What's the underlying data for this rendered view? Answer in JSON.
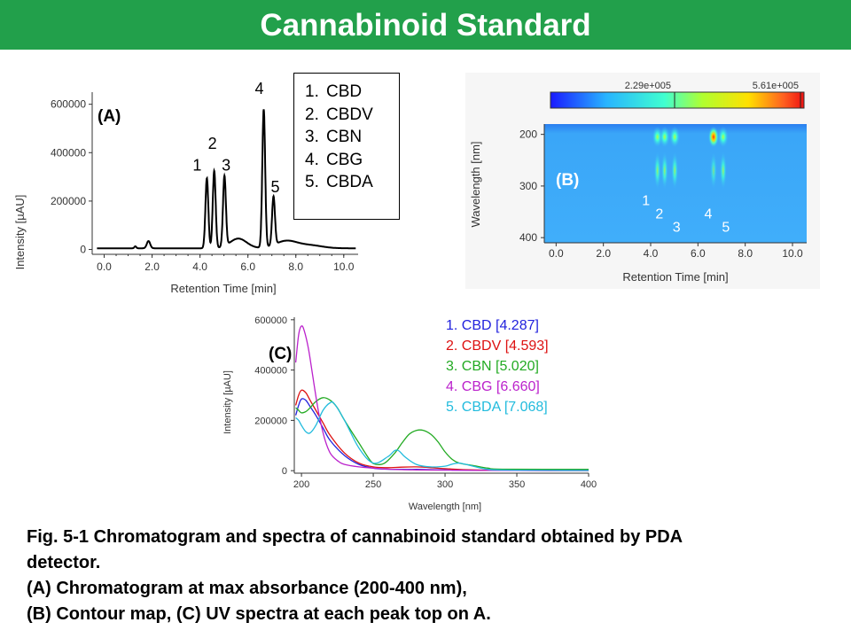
{
  "page": {
    "title": "Cannabinoid Standard"
  },
  "legend_box": {
    "items": [
      {
        "num": "1.",
        "label": "CBD"
      },
      {
        "num": "2.",
        "label": "CBDV"
      },
      {
        "num": "3.",
        "label": "CBN"
      },
      {
        "num": "4.",
        "label": "CBG"
      },
      {
        "num": "5.",
        "label": "CBDA"
      }
    ]
  },
  "caption": {
    "line1": "Fig. 5-1  Chromatogram and spectra of cannabinoid standard obtained by PDA",
    "line2": "detector.",
    "line3": "(A)  Chromatogram at max absorbance (200-400 nm),",
    "line4": "(B) Contour map, (C) UV spectra at each peak top on A."
  },
  "colors": {
    "title_bar": "#22a04b",
    "cbd": "#2222dd",
    "cbdv": "#dd1111",
    "cbn": "#22aa22",
    "cbg": "#bb22cc",
    "cbda": "#22bbdd"
  },
  "chart_data": [
    {
      "id": "A",
      "type": "line",
      "panel_label": "(A)",
      "xlabel": "Retention Time [min]",
      "ylabel": "Intensity [µAU]",
      "xlim": [
        -0.5,
        10.6
      ],
      "ylim": [
        -20000,
        650000
      ],
      "xticks": [
        "0.0",
        "2.0",
        "4.0",
        "6.0",
        "8.0",
        "10.0"
      ],
      "yticks": [
        "0",
        "200000",
        "400000",
        "600000"
      ],
      "baseline": 5000,
      "small_peaks": [
        {
          "x": 1.3,
          "y": 8000,
          "w": 0.04
        },
        {
          "x": 1.85,
          "y": 30000,
          "w": 0.07
        }
      ],
      "peaks": [
        {
          "label": "1",
          "x": 4.287,
          "y": 290000
        },
        {
          "label": "2",
          "x": 4.593,
          "y": 320000
        },
        {
          "label": "3",
          "x": 5.02,
          "y": 290000
        },
        {
          "label": "4",
          "x": 6.66,
          "y": 570000
        },
        {
          "label": "5",
          "x": 7.068,
          "y": 200000
        }
      ]
    },
    {
      "id": "B",
      "type": "heatmap",
      "panel_label": "(B)",
      "xlabel": "Retention Time [min]",
      "ylabel": "Wavelength [nm]",
      "xlim": [
        -0.5,
        10.6
      ],
      "ylim": [
        180,
        410
      ],
      "xticks": [
        "0.0",
        "2.0",
        "4.0",
        "6.0",
        "8.0",
        "10.0"
      ],
      "yticks": [
        "200",
        "300",
        "400"
      ],
      "colorbar_labels": [
        "2.29e+005",
        "5.61e+005"
      ],
      "peak_labels": [
        "1",
        "2",
        "3",
        "4",
        "5"
      ]
    },
    {
      "id": "C",
      "type": "line",
      "panel_label": "(C)",
      "xlabel": "Wavelength  [nm]",
      "ylabel": "Intensity  [µAU]",
      "xlim": [
        195,
        400
      ],
      "ylim": [
        -10000,
        610000
      ],
      "xticks": [
        "200",
        "250",
        "300",
        "350",
        "400"
      ],
      "yticks": [
        "0",
        "200000",
        "400000",
        "600000"
      ],
      "series": [
        {
          "name": "1. CBD",
          "rt": "[4.287]",
          "color": "#2222dd",
          "x": [
            196,
            198,
            200,
            203,
            206,
            210,
            215,
            220,
            230,
            240,
            250,
            260,
            270,
            280,
            290,
            300,
            320,
            350,
            400
          ],
          "y": [
            220000,
            260000,
            285000,
            280000,
            255000,
            220000,
            170000,
            120000,
            60000,
            25000,
            10000,
            6000,
            5000,
            5000,
            4000,
            3000,
            2000,
            1000,
            500
          ]
        },
        {
          "name": "2. CBDV",
          "rt": "[4.593]",
          "color": "#dd1111",
          "x": [
            196,
            198,
            200,
            203,
            206,
            210,
            215,
            220,
            230,
            240,
            250,
            260,
            270,
            280,
            290,
            300,
            320,
            350,
            400
          ],
          "y": [
            260000,
            300000,
            320000,
            310000,
            280000,
            240000,
            190000,
            140000,
            70000,
            30000,
            15000,
            12000,
            14000,
            15000,
            12000,
            8000,
            3000,
            1000,
            500
          ]
        },
        {
          "name": "3. CBN",
          "rt": "[5.020]",
          "color": "#22aa22",
          "x": [
            196,
            198,
            200,
            203,
            206,
            210,
            215,
            220,
            225,
            230,
            240,
            248,
            252,
            258,
            265,
            270,
            275,
            280,
            285,
            290,
            295,
            300,
            305,
            310,
            320,
            330,
            340,
            400
          ],
          "y": [
            250000,
            240000,
            230000,
            235000,
            250000,
            275000,
            290000,
            280000,
            250000,
            200000,
            110000,
            40000,
            25000,
            30000,
            70000,
            110000,
            145000,
            160000,
            160000,
            145000,
            115000,
            75000,
            45000,
            30000,
            20000,
            10000,
            6000,
            5000
          ]
        },
        {
          "name": "4. CBG",
          "rt": "[6.660]",
          "color": "#bb22cc",
          "x": [
            196,
            198,
            200,
            202,
            205,
            208,
            212,
            216,
            220,
            225,
            230,
            240,
            250,
            260,
            270,
            280,
            300,
            330,
            400
          ],
          "y": [
            430000,
            540000,
            575000,
            555000,
            480000,
            370000,
            230000,
            130000,
            70000,
            40000,
            25000,
            15000,
            10000,
            6000,
            4000,
            3000,
            2000,
            1000,
            500
          ]
        },
        {
          "name": "5. CBDA",
          "rt": "[7.068]",
          "color": "#22bbdd",
          "x": [
            196,
            198,
            200,
            203,
            206,
            210,
            215,
            220,
            223,
            230,
            240,
            250,
            260,
            265,
            268,
            272,
            280,
            290,
            300,
            305,
            310,
            318,
            330,
            350,
            400
          ],
          "y": [
            210000,
            200000,
            180000,
            155000,
            150000,
            180000,
            240000,
            270000,
            265000,
            200000,
            90000,
            30000,
            55000,
            80000,
            78000,
            55000,
            25000,
            15000,
            18000,
            26000,
            30000,
            20000,
            5000,
            2000,
            1000
          ]
        }
      ]
    }
  ]
}
